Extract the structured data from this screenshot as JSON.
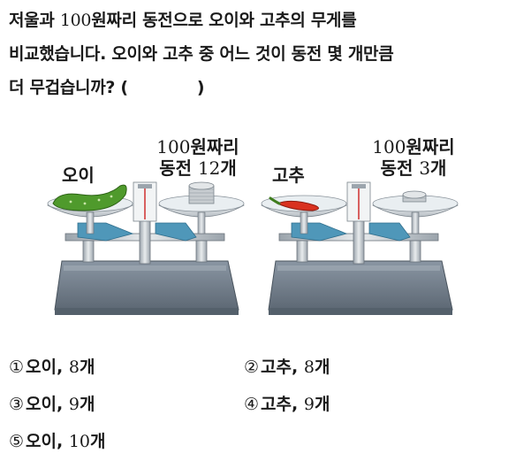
{
  "question": {
    "line1_a": "저울과 ",
    "line1_num": "100",
    "line1_b": "원짜리 동전으로 오이와 고추의 무게를",
    "line2": "비교했습니다. 오이와 고추 중 어느 것이 동전 몇 개만큼",
    "line3_a": "더 무겁습니까? (",
    "line3_b": ")"
  },
  "figure": {
    "left_item": "오이",
    "left_coin_line1_num": "100",
    "left_coin_line1_txt": "원짜리",
    "left_coin_line2_txt": "동전 ",
    "left_coin_line2_num": "12",
    "left_coin_line2_unit": "개",
    "right_item": "고추",
    "right_coin_line1_num": "100",
    "right_coin_line1_txt": "원짜리",
    "right_coin_line2_txt": "동전 ",
    "right_coin_line2_num": "3",
    "right_coin_line2_unit": "개"
  },
  "choices": [
    {
      "mark": "①",
      "item": "오이, ",
      "num": "8",
      "unit": "개"
    },
    {
      "mark": "②",
      "item": "고추, ",
      "num": "8",
      "unit": "개"
    },
    {
      "mark": "③",
      "item": "오이, ",
      "num": "9",
      "unit": "개"
    },
    {
      "mark": "④",
      "item": "고추, ",
      "num": "9",
      "unit": "개"
    },
    {
      "mark": "⑤",
      "item": "오이, ",
      "num": "10",
      "unit": "개"
    }
  ]
}
